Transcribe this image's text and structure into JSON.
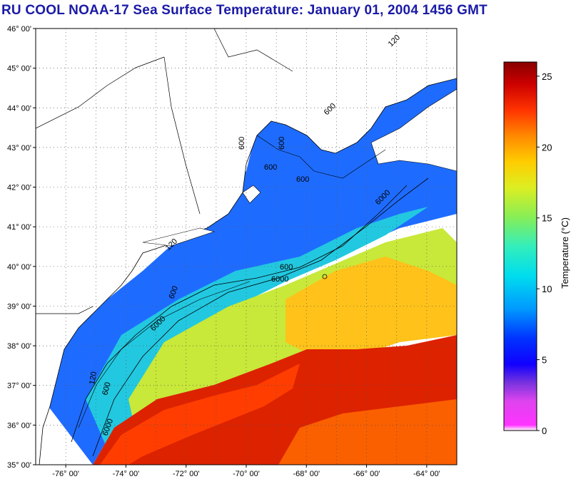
{
  "title": "RU COOL  NOAA-17  Sea Surface Temperature:  January 01, 2004 1456 GMT",
  "map": {
    "lat_labels": [
      "46° 00'",
      "45° 00'",
      "44° 00'",
      "43° 00'",
      "42° 00'",
      "41° 00'",
      "40° 00'",
      "39° 00'",
      "38° 00'",
      "37° 00'",
      "36° 00'",
      "35° 00'"
    ],
    "lon_labels": [
      "-76° 00'",
      "-74° 00'",
      "-72° 00'",
      "-70° 00'",
      "-68° 00'",
      "-66° 00'",
      "-64° 00'"
    ],
    "lat_range": [
      35,
      46
    ],
    "lon_range": [
      -77,
      -63
    ],
    "contour_labels": [
      "120",
      "600",
      "600",
      "600",
      "600",
      "6000",
      "6000",
      "600",
      "6000",
      "120",
      "600",
      "6000",
      "600",
      "120",
      "600"
    ],
    "colors": {
      "land": "#ffffff",
      "warm": "#cc1a00",
      "cold": "#1a5aff"
    }
  },
  "colorbar": {
    "title": "Temperature (°C)",
    "ticks": [
      "25",
      "20",
      "15",
      "10",
      "5",
      "0"
    ],
    "range": [
      0,
      26
    ]
  }
}
